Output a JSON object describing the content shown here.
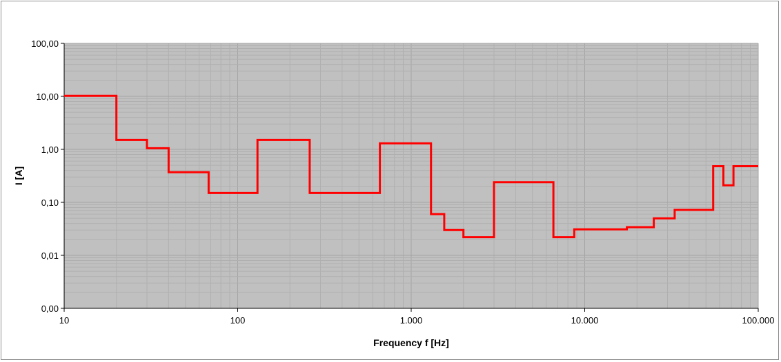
{
  "chart_data": {
    "type": "line",
    "title": "",
    "xlabel": "Frequency f [Hz]",
    "ylabel": "I [A]",
    "x_scale": "log",
    "y_scale": "log",
    "xlim": [
      10,
      100000
    ],
    "ylim": [
      0.001,
      100
    ],
    "grid": true,
    "legend": "none",
    "x_tick_values": [
      10,
      100,
      1000,
      10000,
      100000
    ],
    "x_tick_labels": [
      "10",
      "100",
      "1.000",
      "10.000",
      "100.000"
    ],
    "y_tick_values": [
      0.001,
      0.01,
      0.1,
      1,
      10,
      100
    ],
    "y_tick_labels": [
      "0,00",
      "0,01",
      "0,10",
      "1,00",
      "10,00",
      "100,00"
    ],
    "series": [
      {
        "color": "#ff0000",
        "style": "step",
        "x": [
          10,
          20,
          20,
          30,
          30,
          40,
          40,
          68,
          68,
          130,
          130,
          260,
          260,
          660,
          660,
          1300,
          1300,
          1550,
          1550,
          2000,
          2000,
          3000,
          3000,
          6600,
          6600,
          8700,
          8700,
          17500,
          17500,
          25000,
          25000,
          33000,
          33000,
          55000,
          55000,
          63000,
          63000,
          72000,
          72000,
          100000
        ],
        "y": [
          10.2,
          10.2,
          1.5,
          1.5,
          1.05,
          1.05,
          0.37,
          0.37,
          0.15,
          0.15,
          1.5,
          1.5,
          0.15,
          0.15,
          1.3,
          1.3,
          0.06,
          0.06,
          0.03,
          0.03,
          0.022,
          0.022,
          0.24,
          0.24,
          0.022,
          0.022,
          0.031,
          0.031,
          0.034,
          0.034,
          0.05,
          0.05,
          0.072,
          0.072,
          0.48,
          0.48,
          0.21,
          0.21,
          0.48,
          0.48
        ]
      }
    ]
  },
  "colors": {
    "plot_background": "#c0c0c0",
    "grid_major": "#a3a3a3",
    "grid_minor": "#b0b0b0",
    "axis": "#000000",
    "series": "#ff0000"
  }
}
